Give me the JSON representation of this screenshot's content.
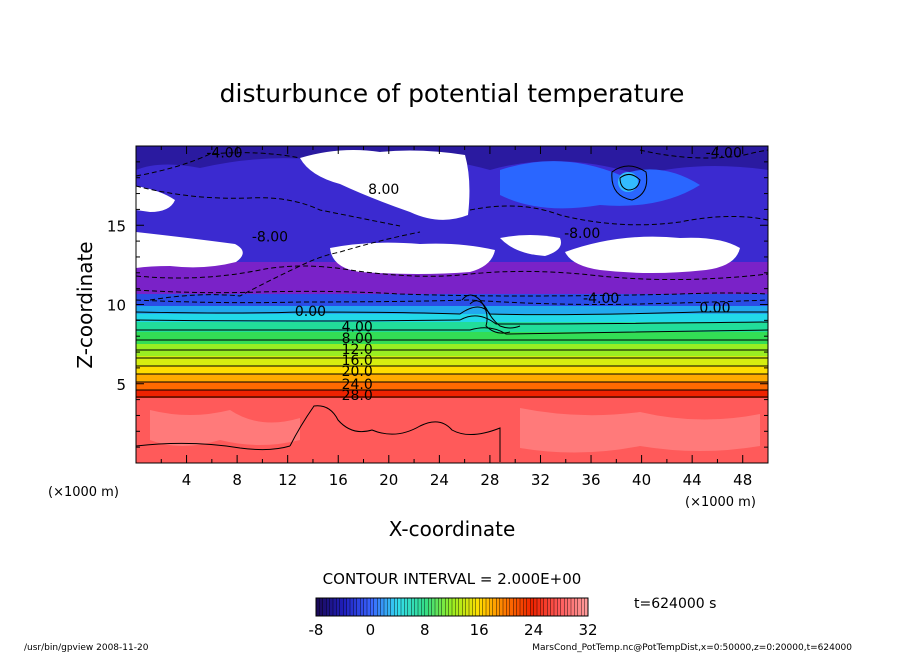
{
  "chart_data": {
    "type": "heatmap",
    "title": "disturbunce of potential temperature",
    "xlabel": "X-coordinate",
    "ylabel": "Z-coordinate",
    "x_unit": "(×1000 m)",
    "y_unit": "(×1000 m)",
    "xlim": [
      0,
      50
    ],
    "ylim": [
      0,
      20
    ],
    "x_ticks": [
      "4",
      "8",
      "12",
      "16",
      "20",
      "24",
      "28",
      "32",
      "36",
      "40",
      "44",
      "48"
    ],
    "y_ticks": [
      "5",
      "10",
      "15"
    ],
    "contour_interval_text": "CONTOUR INTERVAL = 2.000E+00",
    "time_text": "t=624000 s",
    "colorbar": {
      "min": -8,
      "max": 32,
      "ticks": [
        "-8",
        "0",
        "8",
        "16",
        "24",
        "32"
      ],
      "colors": [
        "#1a0a5a",
        "#2020c0",
        "#3a66ff",
        "#33ddee",
        "#33dd88",
        "#99ee22",
        "#ffdd00",
        "#ff7700",
        "#ee2200",
        "#ff5a5a",
        "#ff9a9a"
      ]
    },
    "contour_labels": [
      {
        "text": "-4.00",
        "x": 7.0,
        "z": 19.6
      },
      {
        "text": "8.00",
        "x": 19.6,
        "z": 17.3
      },
      {
        "text": "-4.00",
        "x": 46.5,
        "z": 19.6
      },
      {
        "text": "-8.00",
        "x": 10.6,
        "z": 14.3
      },
      {
        "text": "-8.00",
        "x": 35.3,
        "z": 14.5
      },
      {
        "text": "-4.00",
        "x": 36.8,
        "z": 10.4
      },
      {
        "text": "0.00",
        "x": 13.8,
        "z": 9.6
      },
      {
        "text": "0.00",
        "x": 45.8,
        "z": 9.8
      },
      {
        "text": "4.00",
        "x": 17.5,
        "z": 8.6
      },
      {
        "text": "8.00",
        "x": 17.5,
        "z": 7.9
      },
      {
        "text": "12.0",
        "x": 17.5,
        "z": 7.2
      },
      {
        "text": "16.0",
        "x": 17.5,
        "z": 6.5
      },
      {
        "text": "20.0",
        "x": 17.5,
        "z": 5.8
      },
      {
        "text": "24.0",
        "x": 17.5,
        "z": 5.0
      },
      {
        "text": "28.0",
        "x": 17.5,
        "z": 4.3
      }
    ]
  },
  "footer": {
    "left": "/usr/bin/gpview  2008-11-20",
    "right": "MarsCond_PotTemp.nc@PotTempDist,x=0:50000,z=0:20000,t=624000"
  }
}
